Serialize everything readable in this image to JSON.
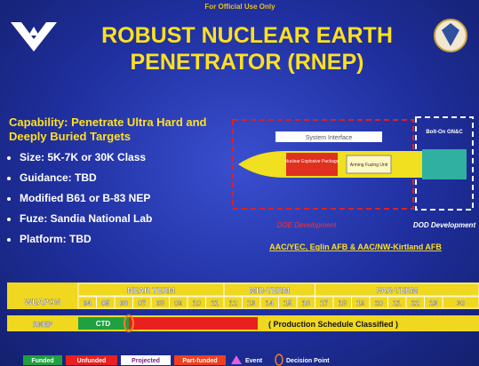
{
  "header": {
    "classification": "For Official Use Only",
    "title": "ROBUST NUCLEAR EARTH PENETRATOR (RNEP)"
  },
  "capability": {
    "heading": "Capability: Penetrate Ultra Hard and Deeply Buried Targets",
    "items": [
      "Size: 5K-7K or 30K Class",
      "Guidance: TBD",
      "Modified B61 or B-83 NEP",
      "Fuze: Sandia National Lab",
      "Platform: TBD"
    ]
  },
  "diagram": {
    "system_label": "System Interface",
    "nep_label": "Nuclear Explosive Package",
    "fuze_label": "Arming Fuzing Unit",
    "gnc_label": "Bolt-On GN&C",
    "doe": "DOE Development",
    "dod": "DOD Development",
    "orgs": "AAC/YEC, Eglin AFB & AAC/NW-Kirtland AFB"
  },
  "schedule": {
    "weapon_header": "WEAPON",
    "terms": [
      "NEAR TERM",
      "MID-TERM",
      "FAR-TERM"
    ],
    "years": [
      "04",
      "05",
      "06",
      "07",
      "08",
      "09",
      "10",
      "11",
      "12",
      "13",
      "14",
      "15",
      "16",
      "17",
      "18",
      "19",
      "20",
      "21",
      "22",
      "23",
      "30"
    ],
    "row_label": "RNEP",
    "ctd": "CTD",
    "note": "( Production Schedule Classified )"
  },
  "legend": {
    "funded": "Funded",
    "unfunded": "Unfunded",
    "projected": "Projected",
    "part_funded": "Part-funded",
    "event": "Event",
    "decision": "Decision Point"
  }
}
